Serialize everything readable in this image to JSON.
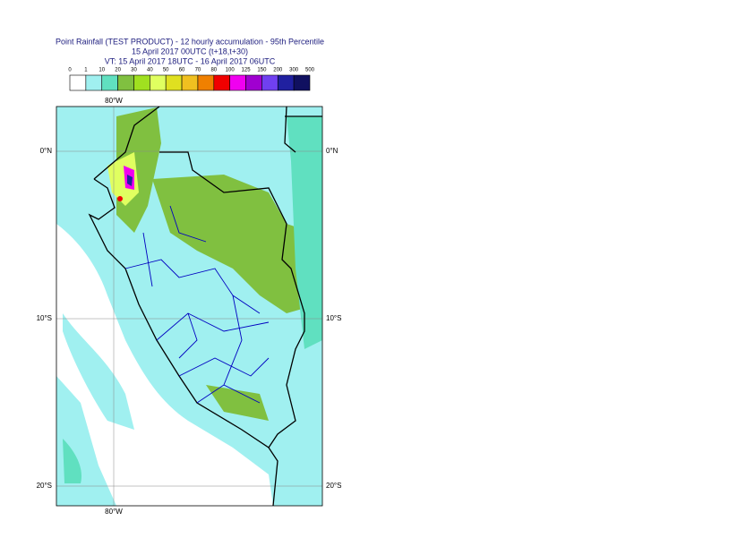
{
  "header": {
    "title": "Point Rainfall (TEST PRODUCT) - 12 hourly accumulation - 95th Percentile",
    "base_time": "15 April 2017 00UTC (t+18,t+30)",
    "valid_time": "VT: 15 April 2017 18UTC - 16 April 2017 06UTC"
  },
  "legend": {
    "labels": [
      0,
      1,
      10,
      20,
      30,
      40,
      50,
      60,
      70,
      80,
      100,
      125,
      150,
      200,
      300,
      500
    ],
    "colors": [
      "#ffffff",
      "#a0f0f0",
      "#60e0c0",
      "#80c040",
      "#a0e020",
      "#e0ff60",
      "#e0e020",
      "#f0c020",
      "#f08000",
      "#f00000",
      "#f000f0",
      "#a000d0",
      "#7040f0",
      "#2020a0",
      "#101060"
    ]
  },
  "map": {
    "lon_label": "80°W",
    "lat_labels": [
      "0°N",
      "10°S",
      "20°S"
    ]
  }
}
